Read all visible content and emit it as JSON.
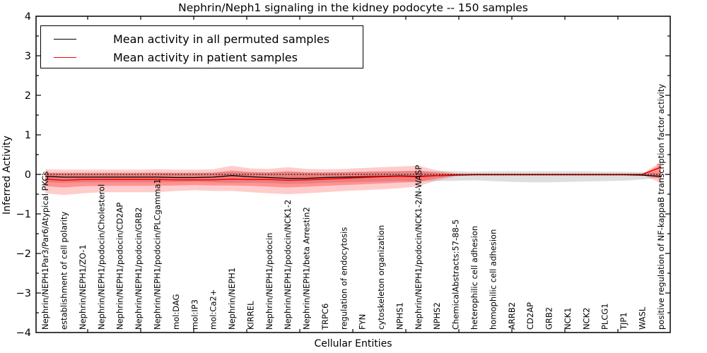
{
  "title": "Nephrin/Neph1 signaling in the kidney podocyte -- 150 samples",
  "legend": {
    "items": [
      {
        "label": "Mean activity in all permuted samples",
        "color": "#000000"
      },
      {
        "label": "Mean activity in patient samples",
        "color": "#ff0000"
      }
    ]
  },
  "axes": {
    "ylabel": "Inferred Activity",
    "xlabel": "Cellular Entities",
    "ytick_labels": [
      "4",
      "3",
      "2",
      "1",
      "0",
      "−1",
      "−2",
      "−3",
      "−4"
    ],
    "ytick_values": [
      4,
      3,
      2,
      1,
      0,
      -1,
      -2,
      -3,
      -4
    ]
  },
  "chart_data": {
    "type": "line",
    "title": "Nephrin/Neph1 signaling in the kidney podocyte -- 150 samples",
    "xlabel": "Cellular Entities",
    "ylabel": "Inferred Activity",
    "ylim": [
      -4,
      4
    ],
    "grid": false,
    "legend_position": "upper left",
    "zero_line": 0,
    "categories": [
      "Nephrin/NEPH1Par3/Par6/Atypical PKCs",
      "establishment of cell polarity",
      "Nephrin/NEPH1/ZO-1",
      "Nephrin/NEPH1/podocin/Cholesterol",
      "Nephrin/NEPH1/podocin/CD2AP",
      "Nephrin/NEPH1/podocin/GRB2",
      "Nephrin/NEPH1/podocin/PLCgamma1",
      "mol:DAG",
      "mol:IP3",
      "mol:Ca2+",
      "Nephrin/NEPH1",
      "KIRREL",
      "Nephrin/NEPH1/podocin",
      "Nephrin/NEPH1/podocin/NCK1-2",
      "Nephrin/NEPH1/beta Arrestin2",
      "TRPC6",
      "regulation of endocytosis",
      "FYN",
      "cytoskeleton organization",
      "NPHS1",
      "Nephrin/NEPH1/podocin/NCK1-2/N-WASP",
      "NPHS2",
      "ChemicalAbstracts:57-88-5",
      "heterophilic cell adhesion",
      "homophilic cell adhesion",
      "ARRB2",
      "CD2AP",
      "GRB2",
      "NCK1",
      "NCK2",
      "PLCG1",
      "TJP1",
      "WASL",
      "positive regulation of NF-kappaB transcription factor activity"
    ],
    "series": [
      {
        "name": "Mean activity in all permuted samples",
        "color": "#000000",
        "width": 1.3,
        "values": [
          -0.05,
          -0.07,
          -0.07,
          -0.07,
          -0.07,
          -0.07,
          -0.07,
          -0.08,
          -0.08,
          -0.07,
          -0.03,
          -0.06,
          -0.08,
          -0.1,
          -0.1,
          -0.08,
          -0.07,
          -0.06,
          -0.05,
          -0.04,
          -0.05,
          -0.03,
          -0.02,
          -0.01,
          -0.01,
          -0.01,
          -0.01,
          -0.01,
          -0.01,
          -0.01,
          -0.01,
          -0.01,
          -0.02,
          -0.05
        ]
      },
      {
        "name": "Mean activity in patient samples",
        "color": "#ff0000",
        "width": 1.5,
        "values": [
          -0.12,
          -0.15,
          -0.13,
          -0.13,
          -0.13,
          -0.13,
          -0.13,
          -0.14,
          -0.14,
          -0.14,
          -0.12,
          -0.13,
          -0.13,
          -0.15,
          -0.14,
          -0.12,
          -0.1,
          -0.08,
          -0.06,
          -0.05,
          -0.06,
          -0.03,
          -0.01,
          0,
          0,
          0,
          0,
          0,
          0,
          0,
          0,
          0,
          0,
          0.18
        ]
      }
    ],
    "bands": [
      {
        "name": "permuted-samples-range",
        "color": "#000000",
        "opacity": 0.13,
        "upper": [
          0.05,
          0.05,
          0.05,
          0.05,
          0.05,
          0.05,
          0.05,
          0.05,
          0.05,
          0.05,
          0.06,
          0.05,
          0.05,
          0.06,
          0.05,
          0.05,
          0.06,
          0.07,
          0.08,
          0.08,
          0.09,
          0.08,
          0.08,
          0.07,
          0.08,
          0.08,
          0.08,
          0.08,
          0.08,
          0.08,
          0.07,
          0.07,
          0.06,
          0.04
        ],
        "lower": [
          -0.2,
          -0.22,
          -0.2,
          -0.2,
          -0.2,
          -0.2,
          -0.2,
          -0.2,
          -0.19,
          -0.2,
          -0.22,
          -0.21,
          -0.22,
          -0.24,
          -0.23,
          -0.21,
          -0.2,
          -0.19,
          -0.18,
          -0.17,
          -0.18,
          -0.17,
          -0.16,
          -0.15,
          -0.17,
          -0.19,
          -0.2,
          -0.2,
          -0.19,
          -0.18,
          -0.17,
          -0.16,
          -0.13,
          -0.08
        ]
      },
      {
        "name": "patient-samples-outer-range",
        "color": "#ff0000",
        "opacity": 0.2,
        "upper": [
          0.13,
          0.12,
          0.12,
          0.12,
          0.12,
          0.12,
          0.13,
          0.12,
          0.12,
          0.13,
          0.22,
          0.15,
          0.14,
          0.18,
          0.14,
          0.13,
          0.14,
          0.16,
          0.18,
          0.2,
          0.22,
          0.1,
          0.03,
          0.01,
          0.01,
          0.01,
          0.01,
          0.01,
          0.01,
          0.01,
          0.01,
          0.01,
          0.01,
          0.32
        ],
        "lower": [
          -0.48,
          -0.52,
          -0.48,
          -0.45,
          -0.45,
          -0.45,
          -0.45,
          -0.42,
          -0.4,
          -0.42,
          -0.42,
          -0.45,
          -0.48,
          -0.5,
          -0.48,
          -0.45,
          -0.42,
          -0.4,
          -0.38,
          -0.35,
          -0.3,
          -0.15,
          -0.05,
          -0.02,
          -0.01,
          -0.01,
          -0.01,
          -0.01,
          -0.01,
          -0.01,
          -0.01,
          -0.01,
          -0.01,
          -0.22
        ]
      },
      {
        "name": "patient-samples-inner-range",
        "color": "#ff0000",
        "opacity": 0.28,
        "upper": [
          0.04,
          0.03,
          0.03,
          0.03,
          0.03,
          0.03,
          0.04,
          0.03,
          0.03,
          0.04,
          0.1,
          0.06,
          0.05,
          0.08,
          0.05,
          0.05,
          0.05,
          0.06,
          0.07,
          0.08,
          0.09,
          0.04,
          0.01,
          0,
          0,
          0,
          0,
          0,
          0,
          0,
          0,
          0,
          0,
          0.25
        ],
        "lower": [
          -0.3,
          -0.33,
          -0.3,
          -0.29,
          -0.29,
          -0.29,
          -0.29,
          -0.28,
          -0.27,
          -0.28,
          -0.28,
          -0.29,
          -0.31,
          -0.33,
          -0.31,
          -0.29,
          -0.27,
          -0.25,
          -0.23,
          -0.21,
          -0.19,
          -0.1,
          -0.03,
          -0.01,
          0,
          0,
          0,
          0,
          0,
          0,
          0,
          0,
          0,
          -0.12
        ]
      }
    ]
  }
}
